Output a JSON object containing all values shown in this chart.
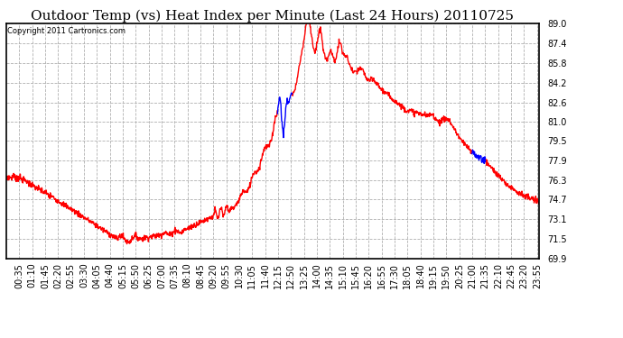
{
  "title": "Outdoor Temp (vs) Heat Index per Minute (Last 24 Hours) 20110725",
  "copyright": "Copyright 2011 Cartronics.com",
  "y_min": 69.9,
  "y_max": 89.0,
  "y_ticks": [
    69.9,
    71.5,
    73.1,
    74.7,
    76.3,
    77.9,
    79.5,
    81.0,
    82.6,
    84.2,
    85.8,
    87.4,
    89.0
  ],
  "x_labels": [
    "00:35",
    "01:10",
    "01:45",
    "02:20",
    "02:55",
    "03:30",
    "04:05",
    "04:40",
    "05:15",
    "05:50",
    "06:25",
    "07:00",
    "07:35",
    "08:10",
    "08:45",
    "09:20",
    "09:55",
    "10:30",
    "11:05",
    "11:40",
    "12:15",
    "12:50",
    "13:25",
    "14:00",
    "14:35",
    "15:10",
    "15:45",
    "16:20",
    "16:55",
    "17:30",
    "18:05",
    "18:40",
    "19:15",
    "19:50",
    "20:25",
    "21:00",
    "21:35",
    "22:10",
    "22:45",
    "23:20",
    "23:55"
  ],
  "background_color": "#ffffff",
  "plot_background": "#ffffff",
  "grid_color": "#b0b0b0",
  "line_color_red": "#ff0000",
  "line_color_blue": "#0000ff",
  "title_fontsize": 11,
  "copyright_fontsize": 6,
  "tick_fontsize": 7
}
